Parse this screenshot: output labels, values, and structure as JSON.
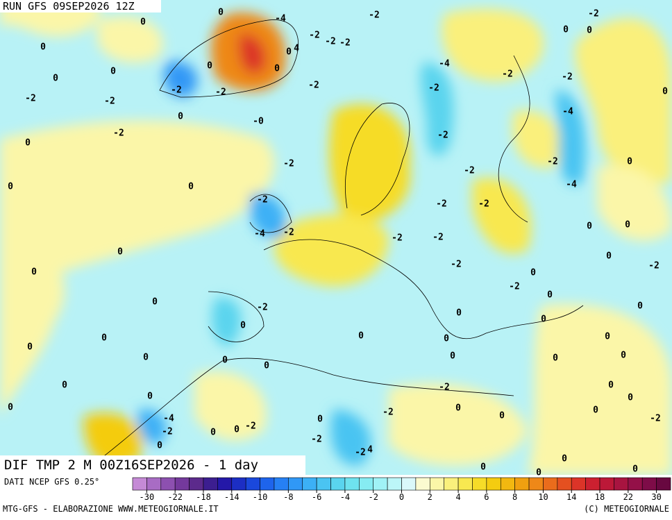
{
  "map": {
    "run_label": "RUN GFS 09SEP2026 12Z",
    "field_label": "DIF TMP 2 M 00Z16SEP2026 - 1 day",
    "source_label": "DATI NCEP GFS 0.25°",
    "footer_left": "MTG-GFS - ELABORAZIONE WWW.METEOGIORNALE.IT",
    "footer_right": "(C) METEOGIORNALE",
    "contour_labels": [
      "0",
      "-4",
      "-2",
      "-2",
      "0",
      "0",
      "0",
      "-2",
      "-2",
      "0",
      "4",
      "0",
      "-2",
      "-4",
      "0",
      "0",
      "0",
      "-2",
      "-2",
      "0",
      "-2",
      "-2",
      "-2",
      "-2",
      "-2",
      "-2",
      "0",
      "0",
      "-0",
      "-4",
      "-2",
      "-2",
      "0",
      "-2",
      "-2",
      "-2",
      "0",
      "0",
      "0",
      "-4",
      "-2",
      "-2",
      "-2",
      "0",
      "0",
      "-4",
      "-2",
      "-2",
      "-2",
      "0",
      "0",
      "-2",
      "-2",
      "0",
      "0",
      "-2",
      "0",
      "-2",
      "0",
      "0",
      "0",
      "0",
      "0",
      "0",
      "0",
      "0",
      "0",
      "0",
      "0",
      "0",
      "0",
      "0",
      "0",
      "0",
      "0",
      "-2",
      "0",
      "0",
      "0",
      "0",
      "0",
      "-2",
      "-4",
      "0",
      "0",
      "0",
      "-2",
      "-2",
      "0",
      "-2",
      "0",
      "-2",
      "0",
      "-2",
      "4",
      "0",
      "0",
      "0",
      "0"
    ]
  },
  "legend": {
    "ticks": [
      -30,
      -22,
      -18,
      -14,
      -10,
      -8,
      -6,
      -4,
      -2,
      0,
      2,
      4,
      6,
      8,
      10,
      14,
      18,
      22,
      30
    ],
    "colors": [
      "#c58ad6",
      "#a86cc4",
      "#8d50b0",
      "#74399c",
      "#5c2a8c",
      "#3c1e90",
      "#2418a8",
      "#1c2ec4",
      "#1a48dc",
      "#1e64ec",
      "#2680f4",
      "#3098f6",
      "#3cb0f6",
      "#4ac4f2",
      "#5ad4ee",
      "#6ee2ee",
      "#86ecf2",
      "#a0f2f6",
      "#bcf6f8",
      "#daf8fa",
      "#fbfbd0",
      "#fbf6a8",
      "#faf07c",
      "#f8e850",
      "#f6dc28",
      "#f4cc10",
      "#f2b810",
      "#f0a010",
      "#ee8818",
      "#ea6c1c",
      "#e45020",
      "#dc3428",
      "#cc2030",
      "#bc1838",
      "#a81440",
      "#941048",
      "#7e0c48",
      "#680840"
    ]
  }
}
